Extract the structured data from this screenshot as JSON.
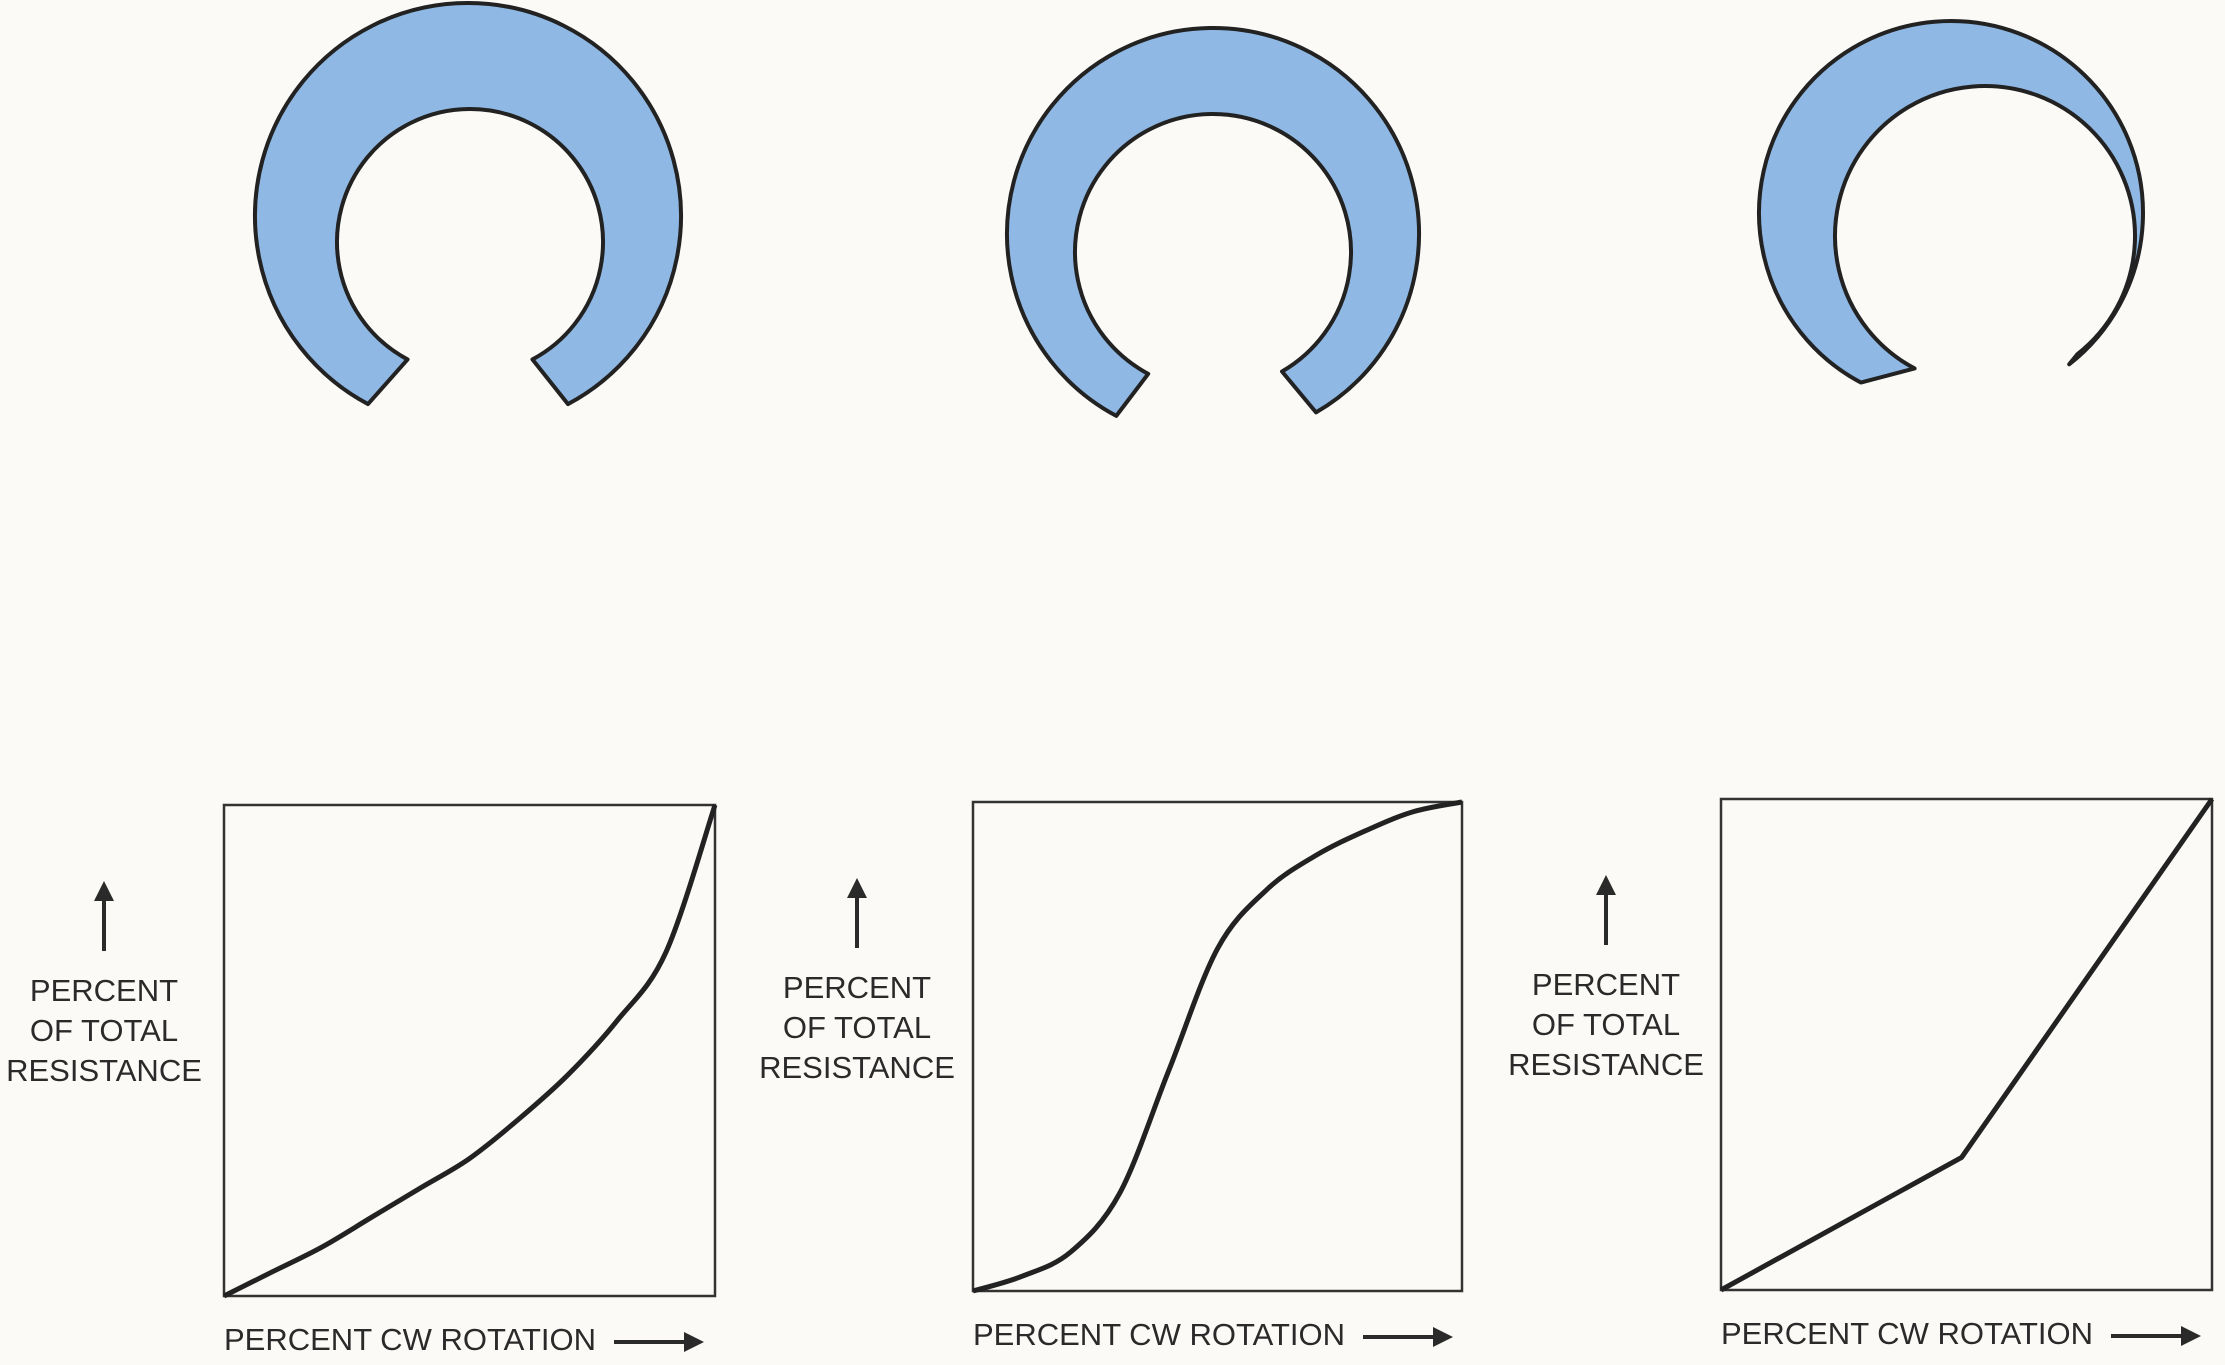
{
  "chart_data": [
    {
      "type": "line",
      "x_label": "PERCENT CW ROTATION",
      "y_label": [
        "PERCENT",
        "OF TOTAL",
        "RESISTANCE"
      ],
      "x": [
        0,
        10,
        20,
        30,
        40,
        50,
        60,
        70,
        80,
        90,
        100
      ],
      "values": [
        0,
        5,
        10,
        16,
        22,
        28,
        36,
        45,
        56,
        70,
        100
      ],
      "xlim": [
        0,
        100
      ],
      "ylim": [
        0,
        100
      ],
      "color": "#222222"
    },
    {
      "type": "line",
      "x_label": "PERCENT CW ROTATION",
      "y_label": [
        "PERCENT",
        "OF TOTAL",
        "RESISTANCE"
      ],
      "x": [
        0,
        10,
        20,
        30,
        40,
        50,
        60,
        70,
        80,
        90,
        100
      ],
      "values": [
        0,
        3,
        8,
        20,
        45,
        70,
        82,
        89,
        94,
        98,
        100
      ],
      "xlim": [
        0,
        100
      ],
      "ylim": [
        0,
        100
      ],
      "color": "#222222"
    },
    {
      "type": "line",
      "x_label": "PERCENT CW ROTATION",
      "y_label": [
        "PERCENT",
        "OF TOTAL",
        "RESISTANCE"
      ],
      "x": [
        0,
        49,
        100
      ],
      "values": [
        0,
        27,
        100
      ],
      "xlim": [
        0,
        100
      ],
      "ylim": [
        0,
        100
      ],
      "color": "#222222"
    }
  ]
}
